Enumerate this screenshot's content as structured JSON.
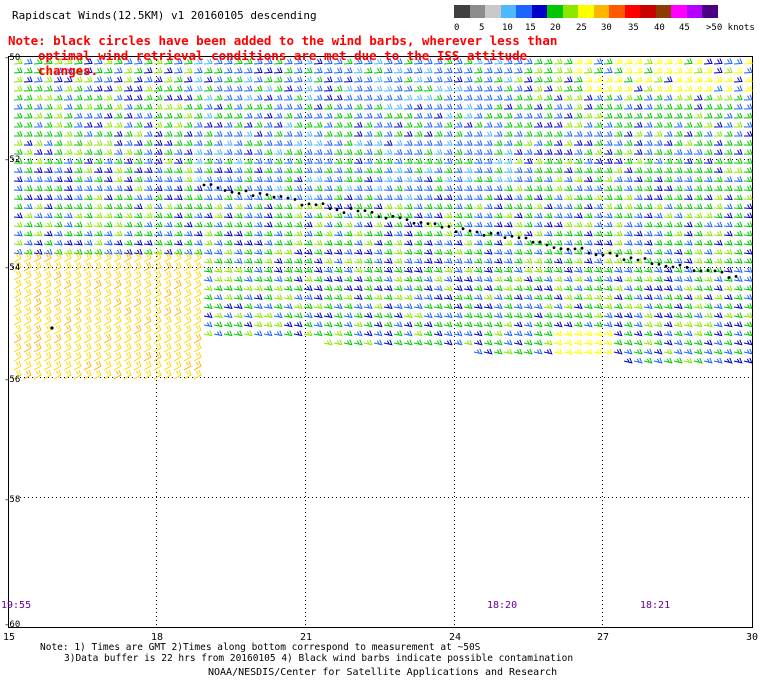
{
  "title": "Rapidscat Winds(12.5KM) v1 20160105 descending",
  "note": {
    "line1": "Note: black circles have been added to the wind barbs, wherever less than",
    "line2": "optimal wind retrieval conditions are met due to the ISS attitude changes."
  },
  "legend": {
    "unit": "knots",
    "labels": [
      "0",
      "5",
      "10",
      "15",
      "20",
      "25",
      "30",
      "35",
      "40",
      "45",
      ">50 knots"
    ],
    "colors": [
      "#404040",
      "#8c8c8c",
      "#c8c8c8",
      "#4fb8ff",
      "#1e64ff",
      "#0000c8",
      "#00c800",
      "#8ce600",
      "#ffff00",
      "#ffb400",
      "#ff5a00",
      "#ff0000",
      "#c80000",
      "#8c3c00",
      "#ff00ff",
      "#b400ff",
      "#4b0082"
    ]
  },
  "axes": {
    "lat_labels": [
      "-50",
      "-52",
      "-54",
      "-56",
      "-58",
      "-60"
    ],
    "lon_labels": [
      "15",
      "18",
      "21",
      "24",
      "27",
      "30"
    ]
  },
  "times": [
    "19:55",
    "18:20",
    "18:21"
  ],
  "footnote": {
    "line1": "Note: 1) Times are GMT 2)Times along bottom correspond to measurement at ~50S",
    "line2": "3)Data buffer is 22 hrs from 20160105 4) Black wind barbs indicate possible contamination"
  },
  "credit": "NOAA/NESDIS/Center for Satellite Applications and Research"
}
